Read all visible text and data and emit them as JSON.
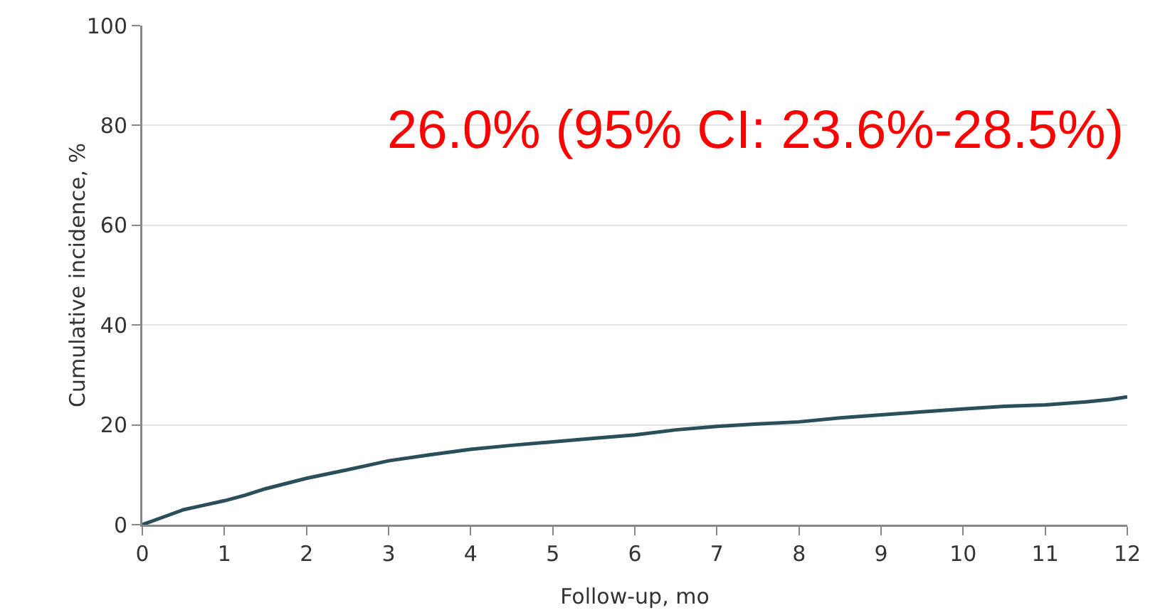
{
  "chart_data": {
    "type": "line",
    "xlabel": "Follow-up, mo",
    "ylabel": "Cumulative incidence, %",
    "x": [
      0,
      0.25,
      0.5,
      0.75,
      1,
      1.25,
      1.5,
      2,
      2.5,
      3,
      3.5,
      4,
      4.5,
      5,
      5.5,
      6,
      6.5,
      7,
      7.5,
      8,
      8.5,
      9,
      9.5,
      10,
      10.5,
      11,
      11.5,
      11.8,
      12
    ],
    "series": [
      {
        "color": "#2b4f5a",
        "values": [
          0,
          1.5,
          3,
          3.9,
          4.8,
          5.9,
          7.2,
          9.3,
          11,
          12.8,
          14,
          15.1,
          15.9,
          16.6,
          17.3,
          18,
          19,
          19.7,
          20.2,
          20.6,
          21.4,
          22,
          22.6,
          23.2,
          23.7,
          24,
          24.6,
          25.1,
          25.6
        ]
      }
    ],
    "xlim": [
      0,
      12
    ],
    "xticks": [
      0,
      1,
      2,
      3,
      4,
      5,
      6,
      7,
      8,
      9,
      10,
      11,
      12
    ],
    "ylim": [
      0,
      100
    ],
    "yticks": [
      0,
      20,
      40,
      60,
      80,
      100
    ],
    "grid": "y",
    "marker": "none",
    "line_style": "solid",
    "annotations": [
      "26.0% (95% CI: 23.6%-28.5%)"
    ]
  }
}
